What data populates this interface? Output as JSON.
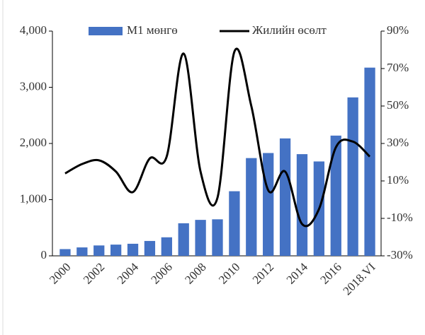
{
  "chart_data": {
    "type": "bar-line",
    "categories": [
      "2000",
      null,
      "2002",
      null,
      "2004",
      null,
      "2006",
      null,
      "2008",
      null,
      "2010",
      null,
      "2012",
      null,
      "2014",
      null,
      "2016",
      null,
      "2018.VI"
    ],
    "series": [
      {
        "name": "M1 мөнгө",
        "type": "bar",
        "color": "#4472c4",
        "values": [
          120,
          150,
          185,
          200,
          215,
          265,
          330,
          580,
          640,
          650,
          1150,
          1740,
          1830,
          2090,
          1810,
          1680,
          2140,
          2820,
          3350
        ]
      },
      {
        "name": "Жилийн өсөлт",
        "type": "line",
        "axis": "y2",
        "color": "#000000",
        "values": [
          14,
          19,
          21,
          15,
          4,
          22,
          23,
          78,
          15,
          1,
          79,
          50,
          5,
          15,
          -13,
          -5,
          28,
          31,
          23
        ]
      }
    ],
    "ylim": [
      0,
      4000
    ],
    "yticks": [
      0,
      {
        "value": 1000,
        "label": "1,000"
      },
      {
        "value": 2000,
        "label": "2,000"
      },
      {
        "value": 3000,
        "label": "3,000"
      },
      {
        "value": 4000,
        "label": "4,000"
      }
    ],
    "y2lim": [
      -30,
      90
    ],
    "y2ticks": [
      {
        "value": -30,
        "label": "-30%"
      },
      {
        "value": -10,
        "label": "-10%"
      },
      {
        "value": 10,
        "label": "10%"
      },
      {
        "value": 30,
        "label": "30%"
      },
      {
        "value": 50,
        "label": "50%"
      },
      {
        "value": 70,
        "label": "70%"
      },
      {
        "value": 90,
        "label": "90%"
      }
    ],
    "legend": "top"
  }
}
